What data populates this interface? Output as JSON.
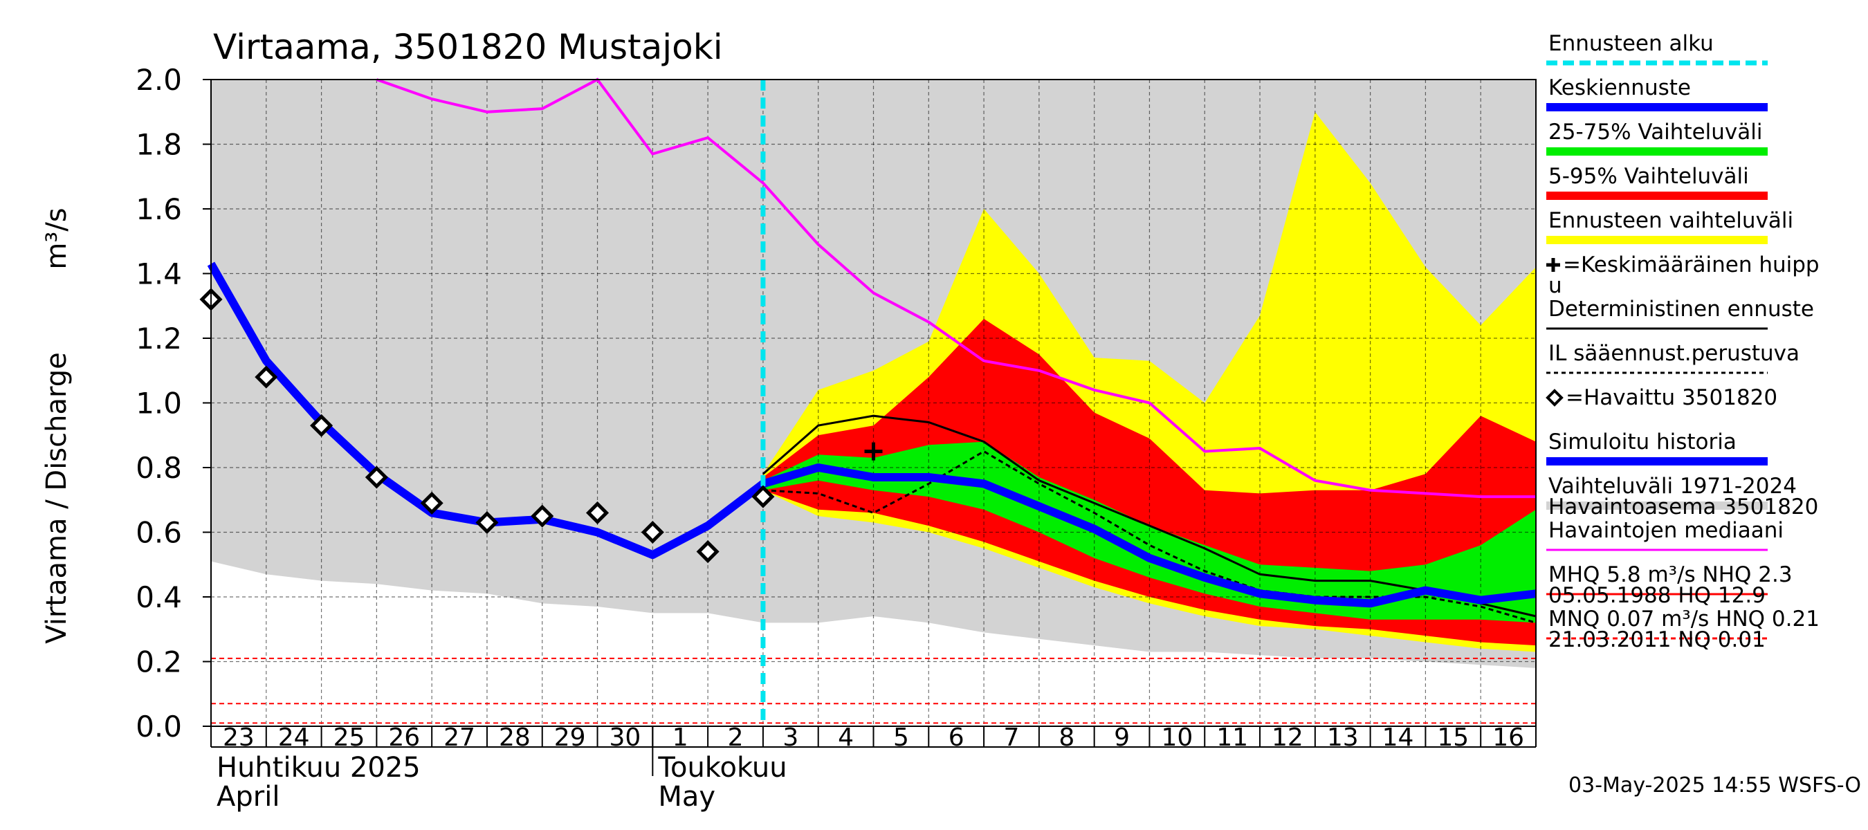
{
  "chart_data": {
    "type": "line",
    "title": "Virtaama, 3501820 Mustajoki",
    "ylabel": "Virtaama / Discharge",
    "yunit": "m³/s",
    "ylim": [
      0,
      2
    ],
    "yticks": [
      "0.0",
      "0.2",
      "0.4",
      "0.6",
      "0.8",
      "1.0",
      "1.2",
      "1.4",
      "1.6",
      "1.8",
      "2.0"
    ],
    "grid": true,
    "legend_position": "right",
    "x_start": "2025-04-23",
    "x_end": "2025-05-17",
    "x_tick_labels": [
      "23",
      "24",
      "25",
      "26",
      "27",
      "28",
      "29",
      "30",
      "1",
      "2",
      "3",
      "4",
      "5",
      "6",
      "7",
      "8",
      "9",
      "10",
      "11",
      "12",
      "13",
      "14",
      "15",
      "16"
    ],
    "months": [
      {
        "fi": "Huhtikuu  2025",
        "en": "April",
        "start": "2025-04-23"
      },
      {
        "fi": "Toukokuu",
        "en": "May",
        "start": "2025-05-01"
      }
    ],
    "forecast_start": "2025-05-03",
    "historical_range": {
      "name": "Vaihteluväli 1971-2024",
      "color": "#d3d3d3",
      "x": [
        "2025-04-23",
        "2025-04-24",
        "2025-04-25",
        "2025-04-26",
        "2025-04-27",
        "2025-04-28",
        "2025-04-29",
        "2025-04-30",
        "2025-05-01",
        "2025-05-02",
        "2025-05-03",
        "2025-05-04",
        "2025-05-05",
        "2025-05-06",
        "2025-05-07",
        "2025-05-08",
        "2025-05-09",
        "2025-05-10",
        "2025-05-11",
        "2025-05-12",
        "2025-05-13",
        "2025-05-14",
        "2025-05-15",
        "2025-05-16",
        "2025-05-17"
      ],
      "low": [
        0.51,
        0.47,
        0.45,
        0.44,
        0.42,
        0.41,
        0.38,
        0.37,
        0.35,
        0.35,
        0.32,
        0.32,
        0.34,
        0.32,
        0.29,
        0.27,
        0.25,
        0.23,
        0.23,
        0.22,
        0.21,
        0.21,
        0.2,
        0.19,
        0.18
      ],
      "high": [
        2.0,
        2.0,
        2.0,
        2.0,
        2.0,
        2.0,
        2.0,
        2.0,
        2.0,
        2.0,
        2.0,
        2.0,
        2.0,
        2.0,
        2.0,
        2.0,
        2.0,
        2.0,
        2.0,
        2.0,
        2.0,
        2.0,
        2.0,
        2.0,
        2.0
      ]
    },
    "forecast_range": {
      "name": "Ennusteen vaihteluväli",
      "color": "#ffff00",
      "x": [
        "2025-05-03",
        "2025-05-04",
        "2025-05-05",
        "2025-05-06",
        "2025-05-07",
        "2025-05-08",
        "2025-05-09",
        "2025-05-10",
        "2025-05-11",
        "2025-05-12",
        "2025-05-13",
        "2025-05-14",
        "2025-05-15",
        "2025-05-16",
        "2025-05-17"
      ],
      "low": [
        0.73,
        0.65,
        0.63,
        0.6,
        0.55,
        0.49,
        0.43,
        0.38,
        0.34,
        0.31,
        0.3,
        0.28,
        0.26,
        0.24,
        0.23
      ],
      "high": [
        0.78,
        1.04,
        1.1,
        1.19,
        1.6,
        1.4,
        1.14,
        1.13,
        1.0,
        1.27,
        1.9,
        1.68,
        1.42,
        1.24,
        1.42
      ]
    },
    "range_5_95": {
      "name": "5-95% Vaihteluväli",
      "color": "#ff0000",
      "x": [
        "2025-05-03",
        "2025-05-04",
        "2025-05-05",
        "2025-05-06",
        "2025-05-07",
        "2025-05-08",
        "2025-05-09",
        "2025-05-10",
        "2025-05-11",
        "2025-05-12",
        "2025-05-13",
        "2025-05-14",
        "2025-05-15",
        "2025-05-16",
        "2025-05-17"
      ],
      "low": [
        0.73,
        0.67,
        0.66,
        0.62,
        0.57,
        0.51,
        0.45,
        0.4,
        0.36,
        0.33,
        0.31,
        0.3,
        0.28,
        0.26,
        0.25
      ],
      "high": [
        0.77,
        0.9,
        0.93,
        1.08,
        1.26,
        1.15,
        0.97,
        0.89,
        0.73,
        0.72,
        0.73,
        0.73,
        0.78,
        0.96,
        0.88
      ]
    },
    "range_25_75": {
      "name": "25-75% Vaihteluväli",
      "color": "#00ee00",
      "x": [
        "2025-05-03",
        "2025-05-04",
        "2025-05-05",
        "2025-05-06",
        "2025-05-07",
        "2025-05-08",
        "2025-05-09",
        "2025-05-10",
        "2025-05-11",
        "2025-05-12",
        "2025-05-13",
        "2025-05-14",
        "2025-05-15",
        "2025-05-16",
        "2025-05-17"
      ],
      "low": [
        0.73,
        0.76,
        0.73,
        0.71,
        0.67,
        0.6,
        0.52,
        0.46,
        0.41,
        0.37,
        0.35,
        0.33,
        0.33,
        0.33,
        0.32
      ],
      "high": [
        0.76,
        0.84,
        0.83,
        0.87,
        0.88,
        0.77,
        0.7,
        0.62,
        0.56,
        0.5,
        0.49,
        0.48,
        0.5,
        0.56,
        0.67
      ]
    },
    "series": [
      {
        "name": "Simuloitu historia",
        "color": "#0000ff",
        "x": [
          "2025-04-23",
          "2025-04-24",
          "2025-04-25",
          "2025-04-26",
          "2025-04-27",
          "2025-04-28",
          "2025-04-29",
          "2025-04-30",
          "2025-05-01",
          "2025-05-02",
          "2025-05-03"
        ],
        "values": [
          1.43,
          1.13,
          0.94,
          0.78,
          0.66,
          0.63,
          0.64,
          0.6,
          0.53,
          0.62,
          0.75
        ]
      },
      {
        "name": "Keskiennuste",
        "color": "#0000ff",
        "x": [
          "2025-05-03",
          "2025-05-04",
          "2025-05-05",
          "2025-05-06",
          "2025-05-07",
          "2025-05-08",
          "2025-05-09",
          "2025-05-10",
          "2025-05-11",
          "2025-05-12",
          "2025-05-13",
          "2025-05-14",
          "2025-05-15",
          "2025-05-16",
          "2025-05-17"
        ],
        "values": [
          0.75,
          0.8,
          0.77,
          0.77,
          0.75,
          0.68,
          0.61,
          0.52,
          0.46,
          0.41,
          0.39,
          0.38,
          0.42,
          0.39,
          0.41
        ]
      },
      {
        "name": "Deterministinen ennuste",
        "color": "#000000",
        "x": [
          "2025-05-03",
          "2025-05-04",
          "2025-05-05",
          "2025-05-06",
          "2025-05-07",
          "2025-05-08",
          "2025-05-09",
          "2025-05-10",
          "2025-05-11",
          "2025-05-12",
          "2025-05-13",
          "2025-05-14",
          "2025-05-15",
          "2025-05-16",
          "2025-05-17"
        ],
        "values": [
          0.78,
          0.93,
          0.96,
          0.94,
          0.88,
          0.76,
          0.69,
          0.62,
          0.55,
          0.47,
          0.45,
          0.45,
          0.42,
          0.38,
          0.34
        ]
      },
      {
        "name": "IL sääennust.perustuva",
        "color": "#000000",
        "x": [
          "2025-05-03",
          "2025-05-04",
          "2025-05-05",
          "2025-05-06",
          "2025-05-07",
          "2025-05-08",
          "2025-05-09",
          "2025-05-10",
          "2025-05-11",
          "2025-05-12",
          "2025-05-13",
          "2025-05-14",
          "2025-05-15",
          "2025-05-16",
          "2025-05-17"
        ],
        "values": [
          0.73,
          0.72,
          0.66,
          0.75,
          0.85,
          0.75,
          0.66,
          0.56,
          0.48,
          0.42,
          0.4,
          0.4,
          0.4,
          0.37,
          0.32
        ]
      },
      {
        "name": "Havaintojen mediaani",
        "color": "#ff00ff",
        "x": [
          "2025-04-26",
          "2025-04-27",
          "2025-04-28",
          "2025-04-29",
          "2025-04-30",
          "2025-05-01",
          "2025-05-02",
          "2025-05-03",
          "2025-05-04",
          "2025-05-05",
          "2025-05-06",
          "2025-05-07",
          "2025-05-08",
          "2025-05-09",
          "2025-05-10",
          "2025-05-11",
          "2025-05-12",
          "2025-05-13",
          "2025-05-14",
          "2025-05-15",
          "2025-05-16",
          "2025-05-17"
        ],
        "values": [
          2.0,
          1.94,
          1.9,
          1.91,
          2.0,
          1.77,
          1.82,
          1.68,
          1.49,
          1.34,
          1.25,
          1.13,
          1.1,
          1.04,
          1.0,
          0.85,
          0.86,
          0.76,
          0.73,
          0.72,
          0.71,
          0.71
        ]
      }
    ],
    "observed": {
      "name": "=Havaittu 3501820",
      "x": [
        "2025-04-23",
        "2025-04-24",
        "2025-04-25",
        "2025-04-26",
        "2025-04-27",
        "2025-04-28",
        "2025-04-29",
        "2025-04-30",
        "2025-05-01",
        "2025-05-02",
        "2025-05-03"
      ],
      "values": [
        1.32,
        1.08,
        0.93,
        0.77,
        0.69,
        0.63,
        0.65,
        0.66,
        0.6,
        0.54,
        0.71
      ]
    },
    "mean_peak": {
      "name": "=Keskimääräinen huippu",
      "x": "2025-05-05",
      "value": 0.85
    },
    "reference_lines": [
      {
        "name": "HNQ",
        "value": 0.21,
        "color": "#ff0000",
        "style": "dashed"
      },
      {
        "name": "MNQ",
        "value": 0.07,
        "color": "#ff0000",
        "style": "dashed"
      },
      {
        "name": "NQ",
        "value": 0.01,
        "color": "#ff0000",
        "style": "dashed"
      }
    ],
    "legend": [
      {
        "label": "Ennusteen alku",
        "kind": "line",
        "color": "#00e5ee",
        "dash": "dash"
      },
      {
        "label": "Keskiennuste",
        "kind": "line",
        "color": "#0000ff",
        "width": "thick"
      },
      {
        "label": "25-75% Vaihteluväli",
        "kind": "line",
        "color": "#00ee00",
        "width": "thick"
      },
      {
        "label": "5-95% Vaihteluväli",
        "kind": "line",
        "color": "#ff0000",
        "width": "thick"
      },
      {
        "label": "Ennusteen vaihteluväli",
        "kind": "line",
        "color": "#ffff00",
        "width": "thick"
      },
      {
        "label": "=Keskimääräinen huipp",
        "label2": "u",
        "kind": "plus",
        "color": "#000000"
      },
      {
        "label": "Deterministinen ennuste",
        "kind": "line",
        "color": "#000000"
      },
      {
        "label": "IL sääennust.perustuva",
        "kind": "line",
        "color": "#000000",
        "dash": "dot"
      },
      {
        "label": "=Havaittu 3501820",
        "kind": "diamond",
        "color": "#000000"
      },
      {
        "label": "Simuloitu historia",
        "kind": "line",
        "color": "#0000ff",
        "width": "thick"
      },
      {
        "label": "Vaihteluväli 1971-2024",
        "label2": " Havaintoasema 3501820",
        "kind": "line",
        "color": "#d3d3d3",
        "width": "thick"
      },
      {
        "label": "Havaintojen mediaani",
        "kind": "line",
        "color": "#ff00ff"
      },
      {
        "label": "MHQ  5.8 m³/s NHQ  2.3",
        "label2": "05.05.1988 HQ 12.9",
        "kind": "line",
        "color": "#ff0000"
      },
      {
        "label": "MNQ 0.07 m³/s HNQ 0.21",
        "label2": "21.03.2011 NQ 0.01",
        "kind": "line",
        "color": "#ff0000",
        "dash": "dash"
      }
    ],
    "footer": "03-May-2025 14:55 WSFS-O"
  }
}
